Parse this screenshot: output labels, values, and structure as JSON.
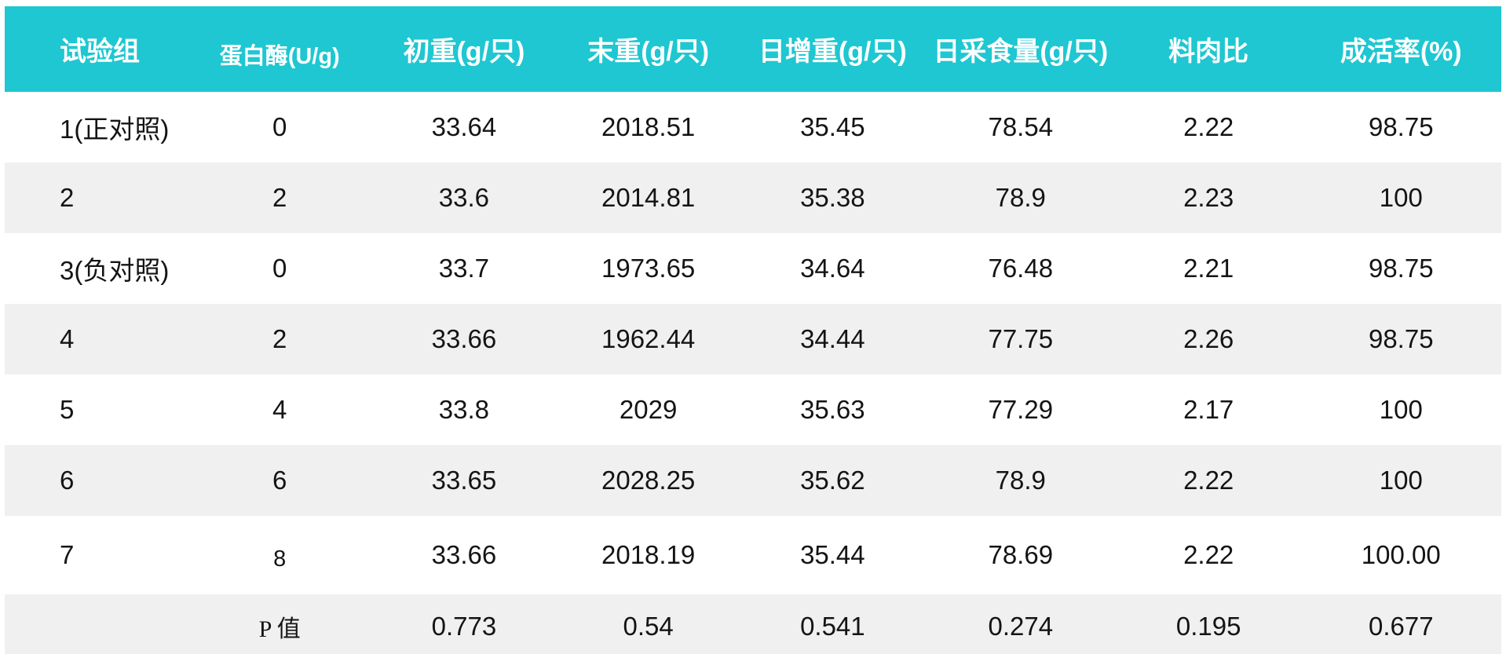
{
  "colors": {
    "header_bg": "#1ec7d1",
    "header_text": "#ffffff",
    "stripe_bg": "#f0f0f0",
    "row_bg": "#ffffff",
    "body_text": "#141414",
    "bottom_bar": "#1ec7d1"
  },
  "table": {
    "headers": [
      "试验组",
      "蛋白酶(U/g)",
      "初重(g/只)",
      "末重(g/只)",
      "日增重(g/只)",
      "日采食量(g/只)",
      "料肉比",
      "成活率(%)"
    ],
    "rows": [
      [
        "1(正对照)",
        "0",
        "33.64",
        "2018.51",
        "35.45",
        "78.54",
        "2.22",
        "98.75"
      ],
      [
        "2",
        "2",
        "33.6",
        "2014.81",
        "35.38",
        "78.9",
        "2.23",
        "100"
      ],
      [
        "3(负对照)",
        "0",
        "33.7",
        "1973.65",
        "34.64",
        "76.48",
        "2.21",
        "98.75"
      ],
      [
        "4",
        "2",
        "33.66",
        "1962.44",
        "34.44",
        "77.75",
        "2.26",
        "98.75"
      ],
      [
        "5",
        "4",
        "33.8",
        "2029",
        "35.63",
        "77.29",
        "2.17",
        "100"
      ],
      [
        "6",
        "6",
        "33.65",
        "2028.25",
        "35.62",
        "78.9",
        "2.22",
        "100"
      ],
      [
        "7",
        "8",
        "33.66",
        "2018.19",
        "35.44",
        "78.69",
        "2.22",
        "100.00"
      ]
    ],
    "footer": [
      "",
      "P 值",
      "0.773",
      "0.54",
      "0.541",
      "0.274",
      "0.195",
      "0.677"
    ]
  }
}
